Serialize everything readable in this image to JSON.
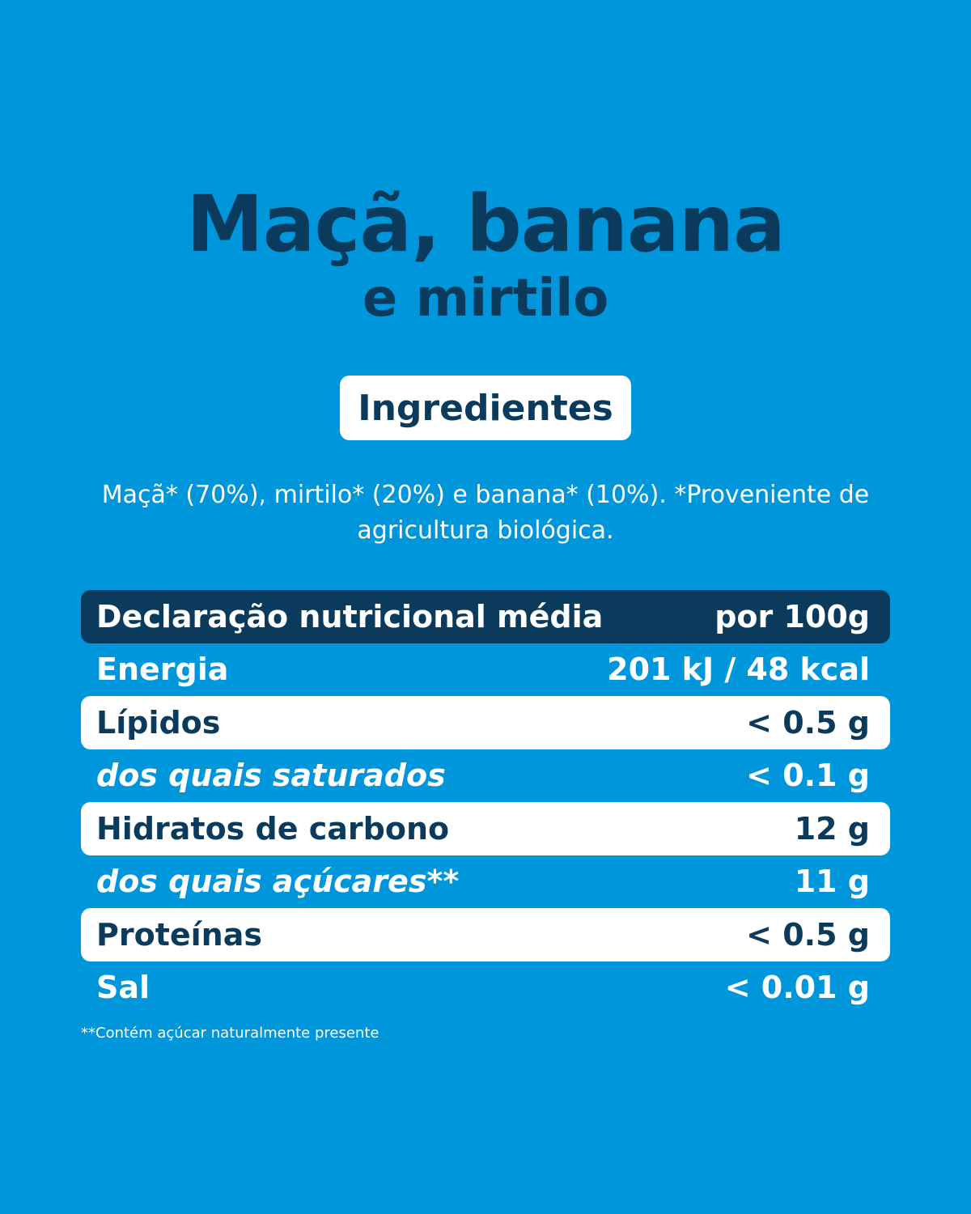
{
  "title": {
    "line1": "Maçã, banana",
    "line2": "e mirtilo"
  },
  "ingredients": {
    "badge_label": "Ingredientes",
    "text": "Maçã* (70%), mirtilo* (20%) e banana* (10%). *Proveniente de agricultura biológica."
  },
  "nutrition": {
    "header": {
      "label": "Declaração nutricional média",
      "value": "por 100g"
    },
    "rows": [
      {
        "label": "Energia",
        "value": "201 kJ / 48 kcal"
      },
      {
        "label": "Lípidos",
        "value": "< 0.5 g"
      },
      {
        "label": "dos quais saturados",
        "value": "< 0.1 g"
      },
      {
        "label": "Hidratos de carbono",
        "value": "12 g"
      },
      {
        "label": "dos quais açúcares**",
        "value": "11 g"
      },
      {
        "label": "Proteínas",
        "value": "< 0.5 g"
      },
      {
        "label": "Sal",
        "value": "< 0.01 g"
      }
    ]
  },
  "footnote": "**Contém açúcar naturalmente presente",
  "colors": {
    "background": "#0096db",
    "navy": "#0b3b5c",
    "white": "#ffffff"
  }
}
